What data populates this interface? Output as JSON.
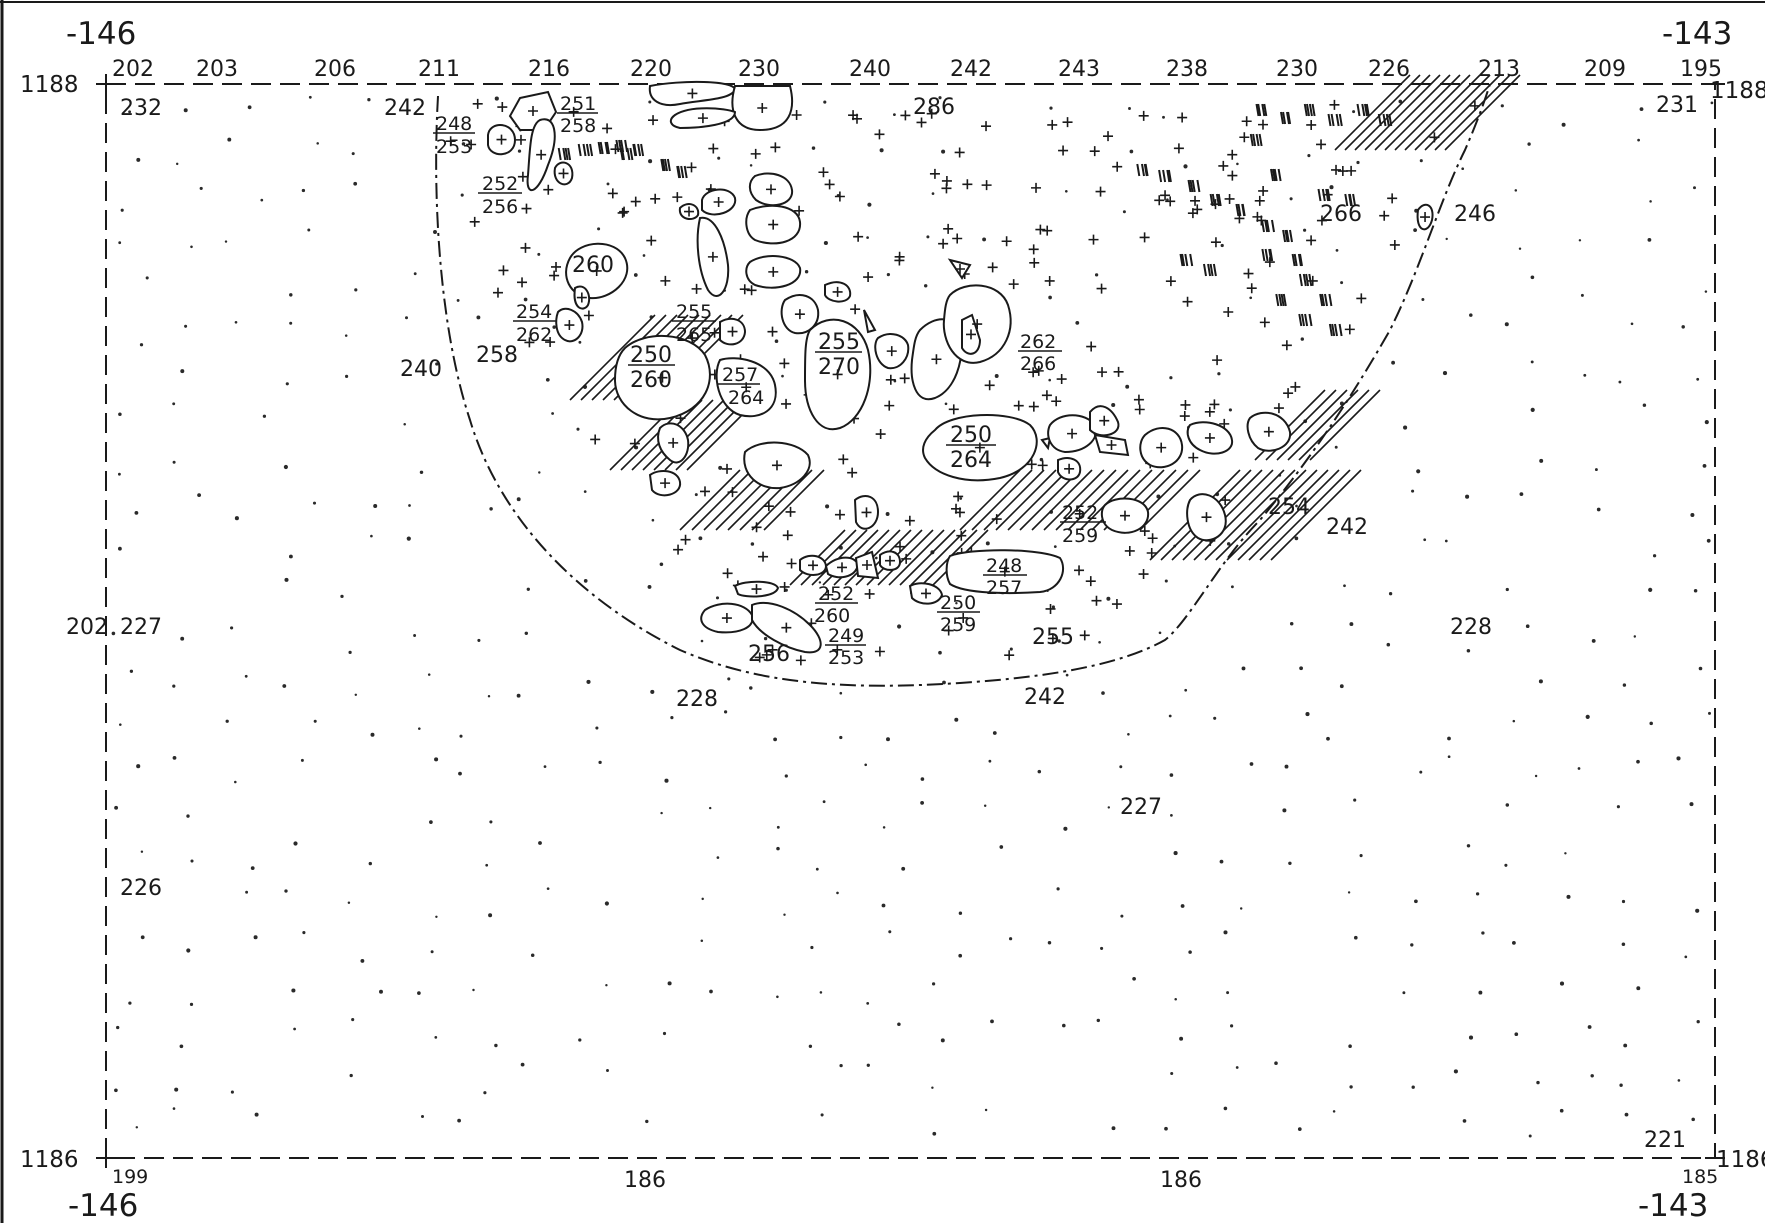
{
  "grid": {
    "x_top_left": "-146",
    "x_top_right": "-143",
    "x_bottom_left": "-146",
    "x_bottom_right": "-143",
    "y_top_left": "1188",
    "y_top_right": "1188",
    "y_bottom_left": "1186",
    "y_bottom_right": "1186"
  },
  "top_edge_heights": [
    "202",
    "203",
    "206",
    "211",
    "216",
    "220",
    "230",
    "240",
    "242",
    "243",
    "238",
    "230",
    "226",
    "213",
    "209",
    "195"
  ],
  "bottom_edge_heights": [
    "199",
    "186",
    "186",
    "185"
  ],
  "left_edge_heights": [
    "202"
  ],
  "spot_heights": [
    "232",
    "231",
    "286",
    "242",
    "246",
    "266",
    "240",
    "258",
    "227",
    "228",
    "228",
    "242",
    "255",
    "256",
    "254",
    "242",
    "227",
    "226",
    "221"
  ],
  "boulder_labels": [
    "260"
  ],
  "height_pairs": [
    {
      "top": "248",
      "bottom": "253"
    },
    {
      "top": "251",
      "bottom": "258"
    },
    {
      "top": "252",
      "bottom": "256"
    },
    {
      "top": "254",
      "bottom": "262"
    },
    {
      "top": "255",
      "bottom": "265"
    },
    {
      "top": "250",
      "bottom": "260"
    },
    {
      "top": "257",
      "bottom": "264"
    },
    {
      "top": "255",
      "bottom": "270"
    },
    {
      "top": "262",
      "bottom": "266"
    },
    {
      "top": "250",
      "bottom": "264"
    },
    {
      "top": "252",
      "bottom": "259"
    },
    {
      "top": "248",
      "bottom": "257"
    },
    {
      "top": "252",
      "bottom": "260"
    },
    {
      "top": "250",
      "bottom": "259"
    },
    {
      "top": "249",
      "bottom": "253"
    }
  ]
}
